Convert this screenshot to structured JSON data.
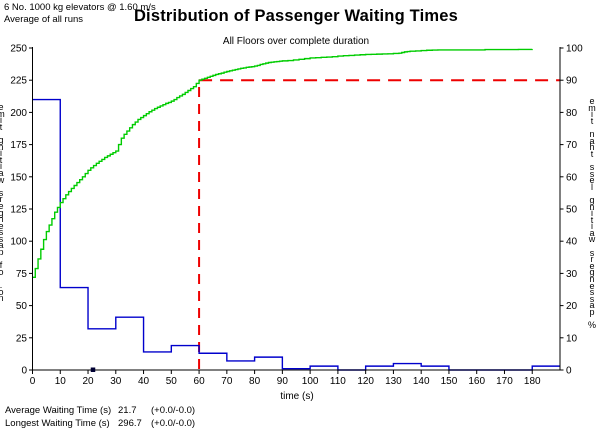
{
  "header": {
    "config_line": "6 No. 1000 kg elevators @ 1.60 m/s",
    "runs_line": "Average of all runs",
    "title": "Distribution of Passenger Waiting Times",
    "subtitle": "All Floors over complete duration"
  },
  "footer": {
    "rows": [
      {
        "label": "Average Waiting Time (s)",
        "value": "21.7",
        "tolerance": "(+0.0/-0.0)"
      },
      {
        "label": "Longest Waiting Time (s)",
        "value": "296.7",
        "tolerance": "(+0.0/-0.0)"
      }
    ]
  },
  "chart_data": {
    "type": "bar",
    "subtype": "histogram-with-cumulative-line",
    "title": "Distribution of Passenger Waiting Times",
    "subtitle": "All Floors over complete duration",
    "xlabel": "time (s)",
    "ylabel_left": "no. of passengers waiting time",
    "ylabel_right": "% passengers waiting less than time",
    "xlim": [
      0,
      190
    ],
    "ylim_left": [
      0,
      250
    ],
    "ylim_right": [
      0,
      100
    ],
    "x_ticks": [
      0,
      10,
      20,
      30,
      40,
      50,
      60,
      70,
      80,
      90,
      100,
      110,
      120,
      130,
      140,
      150,
      160,
      170,
      180
    ],
    "y_ticks_left": [
      0,
      25,
      50,
      75,
      100,
      125,
      150,
      175,
      200,
      225,
      250
    ],
    "y_ticks_right": [
      0,
      10,
      20,
      30,
      40,
      50,
      60,
      70,
      80,
      90,
      100
    ],
    "grid": false,
    "legend": false,
    "histogram": {
      "bin_start": 0,
      "bin_width": 10,
      "counts": [
        210,
        64,
        32,
        41,
        14,
        19,
        13,
        7,
        10,
        1,
        3,
        0,
        3,
        5,
        3,
        0,
        0,
        0,
        3
      ]
    },
    "cumulative_percent": {
      "points": [
        [
          0,
          28.8
        ],
        [
          1,
          31.5
        ],
        [
          2,
          34.5
        ],
        [
          3,
          37.5
        ],
        [
          4,
          40.5
        ],
        [
          5,
          43
        ],
        [
          6,
          45
        ],
        [
          7,
          47
        ],
        [
          8,
          49
        ],
        [
          9,
          50.5
        ],
        [
          10,
          52
        ],
        [
          11,
          53.2
        ],
        [
          12,
          54.4
        ],
        [
          13,
          55.4
        ],
        [
          14,
          56.4
        ],
        [
          15,
          57.3
        ],
        [
          16,
          58.2
        ],
        [
          17,
          59.1
        ],
        [
          18,
          60
        ],
        [
          19,
          61
        ],
        [
          20,
          62
        ],
        [
          21,
          62.8
        ],
        [
          22,
          63.5
        ],
        [
          23,
          64.2
        ],
        [
          24,
          64.8
        ],
        [
          25,
          65.4
        ],
        [
          26,
          66
        ],
        [
          27,
          66.5
        ],
        [
          28,
          67
        ],
        [
          29,
          67.5
        ],
        [
          30,
          68
        ],
        [
          31,
          70
        ],
        [
          32,
          72
        ],
        [
          33,
          73.2
        ],
        [
          34,
          74.2
        ],
        [
          35,
          75.2
        ],
        [
          36,
          76.2
        ],
        [
          37,
          77
        ],
        [
          38,
          77.8
        ],
        [
          39,
          78.4
        ],
        [
          40,
          79
        ],
        [
          41,
          79.6
        ],
        [
          42,
          80.2
        ],
        [
          43,
          80.7
        ],
        [
          44,
          81.2
        ],
        [
          45,
          81.6
        ],
        [
          46,
          82
        ],
        [
          47,
          82.4
        ],
        [
          48,
          82.8
        ],
        [
          49,
          83.1
        ],
        [
          50,
          83.5
        ],
        [
          51,
          84
        ],
        [
          52,
          84.6
        ],
        [
          53,
          85.1
        ],
        [
          54,
          85.6
        ],
        [
          55,
          86.2
        ],
        [
          56,
          86.8
        ],
        [
          57,
          87.4
        ],
        [
          58,
          88
        ],
        [
          59,
          89
        ],
        [
          60,
          90
        ],
        [
          61,
          90.3
        ],
        [
          62,
          90.6
        ],
        [
          63,
          90.9
        ],
        [
          64,
          91.2
        ],
        [
          65,
          91.5
        ],
        [
          66,
          91.8
        ],
        [
          67,
          92
        ],
        [
          68,
          92.2
        ],
        [
          69,
          92.5
        ],
        [
          70,
          92.7
        ],
        [
          71,
          92.9
        ],
        [
          72,
          93.1
        ],
        [
          73,
          93.3
        ],
        [
          74,
          93.5
        ],
        [
          75,
          93.7
        ],
        [
          76,
          93.8
        ],
        [
          77,
          94
        ],
        [
          78,
          94.1
        ],
        [
          79,
          94.2
        ],
        [
          80,
          94.4
        ],
        [
          81,
          94.6
        ],
        [
          82,
          94.9
        ],
        [
          83,
          95.1
        ],
        [
          84,
          95.3
        ],
        [
          85,
          95.5
        ],
        [
          86,
          95.6
        ],
        [
          87,
          95.7
        ],
        [
          88,
          95.8
        ],
        [
          89,
          95.9
        ],
        [
          90,
          96
        ],
        [
          92,
          96.1
        ],
        [
          94,
          96.3
        ],
        [
          96,
          96.5
        ],
        [
          98,
          96.7
        ],
        [
          100,
          96.9
        ],
        [
          102,
          97
        ],
        [
          104,
          97.1
        ],
        [
          106,
          97.2
        ],
        [
          108,
          97.3
        ],
        [
          110,
          97.5
        ],
        [
          112,
          97.6
        ],
        [
          114,
          97.7
        ],
        [
          116,
          97.8
        ],
        [
          118,
          97.9
        ],
        [
          120,
          98
        ],
        [
          122,
          98.05
        ],
        [
          124,
          98.1
        ],
        [
          126,
          98.15
        ],
        [
          128,
          98.2
        ],
        [
          130,
          98.3
        ],
        [
          132,
          98.4
        ],
        [
          133,
          98.6
        ],
        [
          134,
          98.8
        ],
        [
          135,
          98.9
        ],
        [
          136,
          99
        ],
        [
          138,
          99.1
        ],
        [
          140,
          99.2
        ],
        [
          142,
          99.3
        ],
        [
          144,
          99.35
        ],
        [
          146,
          99.4
        ],
        [
          150,
          99.4
        ],
        [
          155,
          99.4
        ],
        [
          160,
          99.4
        ],
        [
          163,
          99.5
        ],
        [
          170,
          99.5
        ],
        [
          175,
          99.55
        ],
        [
          180,
          99.6
        ]
      ]
    },
    "crosshair": {
      "x": 60,
      "percent": 90
    },
    "average_marker_x": 21.7,
    "colors": {
      "histogram": "#0000CC",
      "cumulative": "#00CC00",
      "crosshair": "#EE0000",
      "marker": "#000033",
      "axis": "#000000"
    }
  }
}
